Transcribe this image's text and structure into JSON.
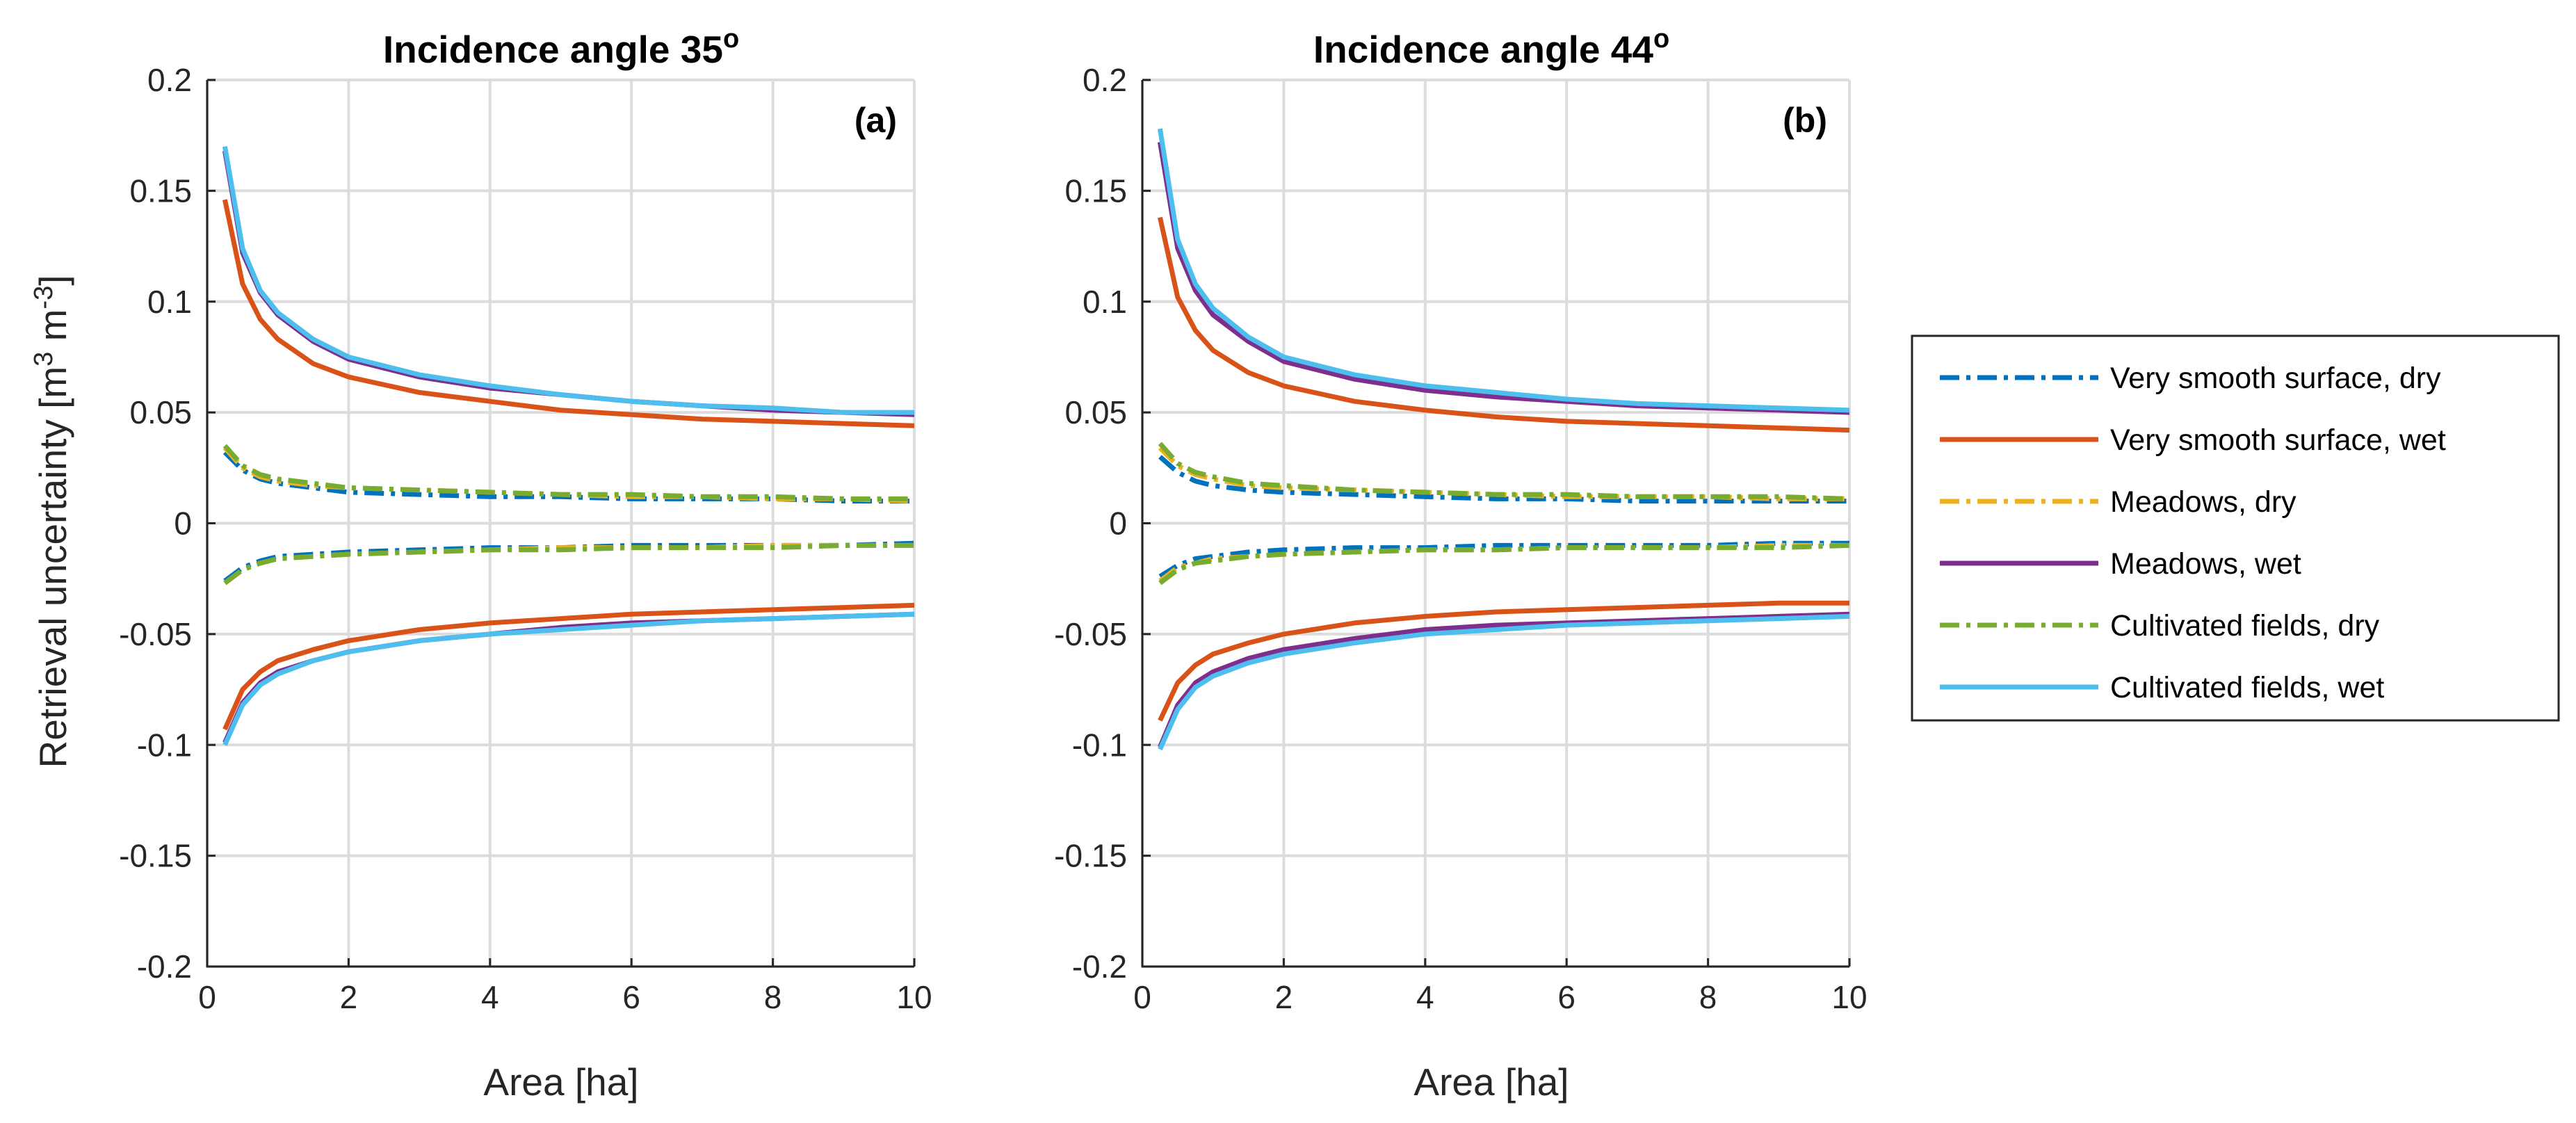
{
  "figure": {
    "ylabel_main": "Retrieval uncertainty [m",
    "ylabel_exp1": "3",
    "ylabel_mid": " m",
    "ylabel_exp2": "-3",
    "ylabel_end": "]"
  },
  "legend": {
    "items": [
      {
        "label": "Very smooth surface, dry",
        "color": "#0072BD",
        "style": "dashdot"
      },
      {
        "label": "Very smooth surface, wet",
        "color": "#D95319",
        "style": "solid"
      },
      {
        "label": "Meadows, dry",
        "color": "#EDB120",
        "style": "dashdot"
      },
      {
        "label": "Meadows, wet",
        "color": "#7E2F8E",
        "style": "solid"
      },
      {
        "label": "Cultivated fields, dry",
        "color": "#77AC30",
        "style": "dashdot"
      },
      {
        "label": "Cultivated fields, wet",
        "color": "#4DBEEE",
        "style": "solid"
      }
    ]
  },
  "chart_data": [
    {
      "type": "line",
      "title": "Incidence angle 35",
      "title_sup": "o",
      "panel_label": "(a)",
      "xlabel": "Area [ha]",
      "ylabel": "Retrieval uncertainty [m3 m-3]",
      "xlim": [
        0,
        10
      ],
      "ylim": [
        -0.2,
        0.2
      ],
      "xticks": [
        "0",
        "2",
        "4",
        "6",
        "8",
        "10"
      ],
      "yticks": [
        "0.2",
        "0.15",
        "0.1",
        "0.05",
        "0",
        "-0.05",
        "-0.1",
        "-0.15",
        "-0.2"
      ],
      "grid": true,
      "x": [
        0.25,
        0.5,
        0.75,
        1,
        1.5,
        2,
        3,
        4,
        5,
        6,
        7,
        8,
        9,
        10
      ],
      "series": [
        {
          "name": "Very smooth surface, dry",
          "upper": [
            0.032,
            0.024,
            0.02,
            0.018,
            0.016,
            0.014,
            0.013,
            0.012,
            0.012,
            0.011,
            0.011,
            0.011,
            0.01,
            0.01
          ],
          "lower": [
            -0.026,
            -0.02,
            -0.017,
            -0.015,
            -0.014,
            -0.013,
            -0.012,
            -0.011,
            -0.011,
            -0.01,
            -0.01,
            -0.01,
            -0.01,
            -0.009
          ]
        },
        {
          "name": "Very smooth surface, wet",
          "upper": [
            0.146,
            0.108,
            0.092,
            0.083,
            0.072,
            0.066,
            0.059,
            0.055,
            0.051,
            0.049,
            0.047,
            0.046,
            0.045,
            0.044
          ],
          "lower": [
            -0.093,
            -0.075,
            -0.067,
            -0.062,
            -0.057,
            -0.053,
            -0.048,
            -0.045,
            -0.043,
            -0.041,
            -0.04,
            -0.039,
            -0.038,
            -0.037
          ]
        },
        {
          "name": "Meadows, dry",
          "upper": [
            0.034,
            0.025,
            0.021,
            0.019,
            0.017,
            0.016,
            0.015,
            0.014,
            0.013,
            0.012,
            0.012,
            0.011,
            0.011,
            0.01
          ],
          "lower": [
            -0.027,
            -0.021,
            -0.018,
            -0.016,
            -0.015,
            -0.014,
            -0.013,
            -0.012,
            -0.011,
            -0.011,
            -0.011,
            -0.01,
            -0.01,
            -0.01
          ]
        },
        {
          "name": "Meadows, wet",
          "upper": [
            0.168,
            0.122,
            0.104,
            0.094,
            0.082,
            0.074,
            0.066,
            0.061,
            0.058,
            0.055,
            0.053,
            0.051,
            0.05,
            0.049
          ],
          "lower": [
            -0.099,
            -0.081,
            -0.072,
            -0.067,
            -0.062,
            -0.058,
            -0.053,
            -0.05,
            -0.047,
            -0.045,
            -0.044,
            -0.043,
            -0.042,
            -0.041
          ]
        },
        {
          "name": "Cultivated fields, dry",
          "upper": [
            0.035,
            0.026,
            0.022,
            0.02,
            0.018,
            0.016,
            0.015,
            0.014,
            0.013,
            0.013,
            0.012,
            0.012,
            0.011,
            0.011
          ],
          "lower": [
            -0.027,
            -0.021,
            -0.018,
            -0.016,
            -0.015,
            -0.014,
            -0.013,
            -0.012,
            -0.012,
            -0.011,
            -0.011,
            -0.011,
            -0.01,
            -0.01
          ]
        },
        {
          "name": "Cultivated fields, wet",
          "upper": [
            0.17,
            0.124,
            0.105,
            0.095,
            0.083,
            0.075,
            0.067,
            0.062,
            0.058,
            0.055,
            0.053,
            0.052,
            0.05,
            0.05
          ],
          "lower": [
            -0.1,
            -0.082,
            -0.073,
            -0.068,
            -0.062,
            -0.058,
            -0.053,
            -0.05,
            -0.048,
            -0.046,
            -0.044,
            -0.043,
            -0.042,
            -0.041
          ]
        }
      ]
    },
    {
      "type": "line",
      "title": "Incidence angle 44",
      "title_sup": "o",
      "panel_label": "(b)",
      "xlabel": "Area [ha]",
      "ylabel": "",
      "xlim": [
        0,
        10
      ],
      "ylim": [
        -0.2,
        0.2
      ],
      "xticks": [
        "0",
        "2",
        "4",
        "6",
        "8",
        "10"
      ],
      "yticks": [
        "0.2",
        "0.15",
        "0.1",
        "0.05",
        "0",
        "-0.05",
        "-0.1",
        "-0.15",
        "-0.2"
      ],
      "grid": true,
      "x": [
        0.25,
        0.5,
        0.75,
        1,
        1.5,
        2,
        3,
        4,
        5,
        6,
        7,
        8,
        9,
        10
      ],
      "series": [
        {
          "name": "Very smooth surface, dry",
          "upper": [
            0.03,
            0.023,
            0.019,
            0.017,
            0.015,
            0.014,
            0.013,
            0.012,
            0.011,
            0.011,
            0.01,
            0.01,
            0.01,
            0.01
          ],
          "lower": [
            -0.024,
            -0.019,
            -0.016,
            -0.015,
            -0.013,
            -0.012,
            -0.011,
            -0.011,
            -0.01,
            -0.01,
            -0.01,
            -0.01,
            -0.009,
            -0.009
          ]
        },
        {
          "name": "Very smooth surface, wet",
          "upper": [
            0.138,
            0.102,
            0.087,
            0.078,
            0.068,
            0.062,
            0.055,
            0.051,
            0.048,
            0.046,
            0.045,
            0.044,
            0.043,
            0.042
          ],
          "lower": [
            -0.089,
            -0.072,
            -0.064,
            -0.059,
            -0.054,
            -0.05,
            -0.045,
            -0.042,
            -0.04,
            -0.039,
            -0.038,
            -0.037,
            -0.036,
            -0.036
          ]
        },
        {
          "name": "Meadows, dry",
          "upper": [
            0.034,
            0.026,
            0.022,
            0.02,
            0.017,
            0.016,
            0.015,
            0.014,
            0.013,
            0.012,
            0.012,
            0.012,
            0.011,
            0.011
          ],
          "lower": [
            -0.026,
            -0.02,
            -0.018,
            -0.016,
            -0.015,
            -0.014,
            -0.013,
            -0.012,
            -0.012,
            -0.011,
            -0.011,
            -0.011,
            -0.01,
            -0.01
          ]
        },
        {
          "name": "Meadows, wet",
          "upper": [
            0.172,
            0.124,
            0.105,
            0.094,
            0.082,
            0.073,
            0.065,
            0.06,
            0.057,
            0.055,
            0.053,
            0.052,
            0.051,
            0.05
          ],
          "lower": [
            -0.101,
            -0.082,
            -0.072,
            -0.067,
            -0.061,
            -0.057,
            -0.052,
            -0.048,
            -0.046,
            -0.045,
            -0.044,
            -0.043,
            -0.042,
            -0.041
          ]
        },
        {
          "name": "Cultivated fields, dry",
          "upper": [
            0.036,
            0.027,
            0.023,
            0.021,
            0.018,
            0.017,
            0.015,
            0.014,
            0.013,
            0.013,
            0.012,
            0.012,
            0.012,
            0.011
          ],
          "lower": [
            -0.027,
            -0.021,
            -0.018,
            -0.017,
            -0.015,
            -0.014,
            -0.013,
            -0.012,
            -0.012,
            -0.011,
            -0.011,
            -0.011,
            -0.011,
            -0.01
          ]
        },
        {
          "name": "Cultivated fields, wet",
          "upper": [
            0.178,
            0.128,
            0.108,
            0.097,
            0.084,
            0.075,
            0.067,
            0.062,
            0.059,
            0.056,
            0.054,
            0.053,
            0.052,
            0.051
          ],
          "lower": [
            -0.102,
            -0.084,
            -0.074,
            -0.069,
            -0.063,
            -0.059,
            -0.054,
            -0.05,
            -0.048,
            -0.046,
            -0.045,
            -0.044,
            -0.043,
            -0.042
          ]
        }
      ]
    }
  ]
}
